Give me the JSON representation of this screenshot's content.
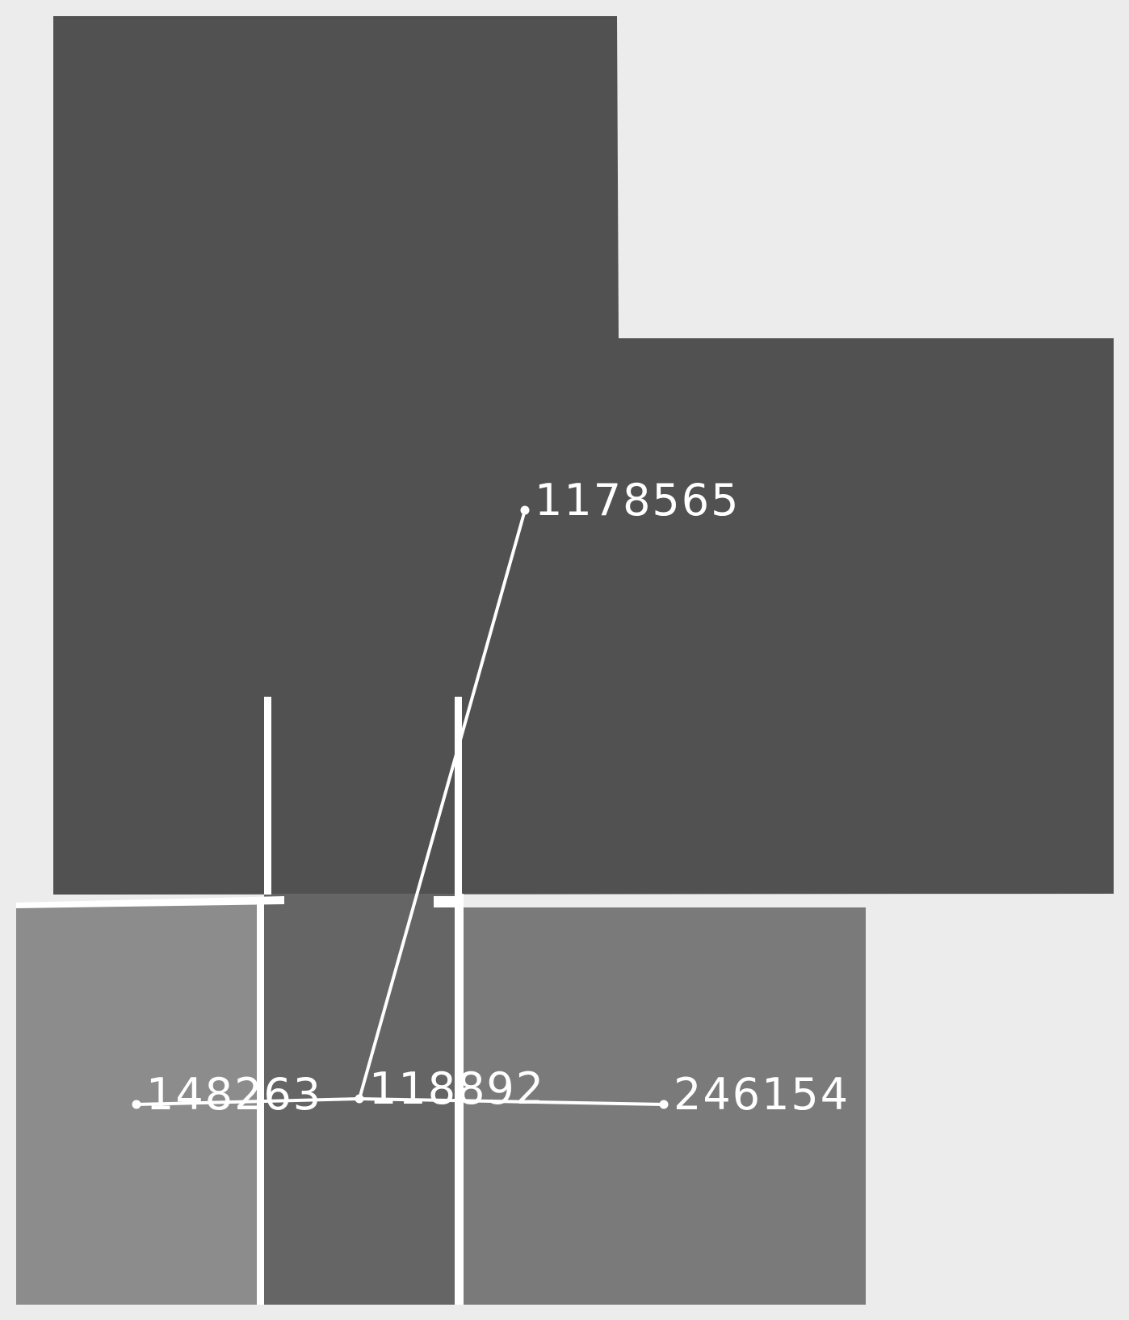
{
  "colors": {
    "background": "#ececec",
    "region_large": "#515151",
    "region_left": "#8c8c8c",
    "region_middle": "#656565",
    "region_right": "#7a7a7a",
    "lines": "#ffffff"
  },
  "nodes": [
    {
      "id": "n1",
      "label": "1178565"
    },
    {
      "id": "n2",
      "label": "148263"
    },
    {
      "id": "n3",
      "label": "118892"
    },
    {
      "id": "n4",
      "label": "246154"
    }
  ],
  "edges": [
    {
      "from": "n1",
      "to": "n3"
    },
    {
      "from": "n2",
      "to": "n3"
    },
    {
      "from": "n3",
      "to": "n4"
    }
  ]
}
